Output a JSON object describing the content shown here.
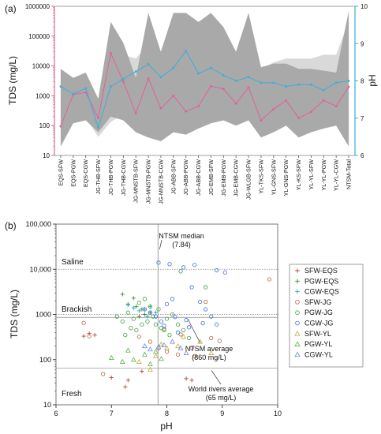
{
  "chart_data": [
    {
      "panel_label": "(a)",
      "type": "line",
      "ylabel": "TDS (mg/L)",
      "y2label": "pH",
      "yscale": "log",
      "ylim": [
        10,
        1000000
      ],
      "y2lim": [
        6,
        10
      ],
      "yticks": [
        "10",
        "100",
        "1000",
        "10000",
        "100000",
        "1000000"
      ],
      "y2ticks": [
        "6",
        "7",
        "8",
        "9",
        "10"
      ],
      "colors": {
        "tds": "#e0609a",
        "ph": "#3aaed8",
        "tds_range": "#a9a9a9",
        "ph_range": "#d9d9d9",
        "left_axis": "#e0609a",
        "right_axis": "#3aaed8"
      },
      "categories": [
        "EQS-SFW",
        "EQS-PGW",
        "EQS-CGW",
        "JG-THB-SFW",
        "JG-THB-PGW",
        "JG-THB-CGW",
        "JG-MNSTB-SFW",
        "JG-MNSTB-PGW",
        "JG-MNSTB-CGW",
        "JG-ABB-SFW",
        "JG-ABB-PGW",
        "JG-ABB-CGW",
        "JG-EMB-SFW",
        "JG-EMB-PGW",
        "JG-EMB-CGW",
        "JG-WLGB-SFW",
        "YL-TKS-SFW",
        "YL-GNS-SFW",
        "YL-GNS-PGW",
        "YL-KS-SFW",
        "YL-YL-SFW",
        "YL-YL-PGW",
        "YL-YL-CGW",
        "NTSM-Total"
      ],
      "series": [
        {
          "values_tds": [
            95,
            1100,
            1300,
            180,
            27000,
            3000,
            260,
            3800,
            380,
            1000,
            300,
            450,
            2100,
            1700,
            550,
            1900,
            150,
            360,
            700,
            180,
            290,
            700,
            450,
            2000
          ]
        },
        {
          "values_ph": [
            7.85,
            7.65,
            7.8,
            6.75,
            7.85,
            8.05,
            8.25,
            8.45,
            8.1,
            8.35,
            8.8,
            8.2,
            8.35,
            8.15,
            8.0,
            8.1,
            7.95,
            7.95,
            7.85,
            7.9,
            7.9,
            7.75,
            7.95,
            8.0
          ]
        }
      ],
      "tds_range": {
        "upper": [
          8000,
          4000,
          6000,
          800,
          300000,
          60000,
          4000,
          600000,
          30000,
          600000,
          600000,
          300000,
          600000,
          200000,
          30000,
          600000,
          9000,
          12000,
          12000,
          8000,
          8000,
          7000,
          6000,
          700000
        ],
        "lower": [
          20,
          120,
          150,
          60,
          200,
          150,
          60,
          40,
          30,
          60,
          50,
          80,
          120,
          150,
          100,
          150,
          40,
          60,
          100,
          40,
          60,
          80,
          100,
          20
        ]
      },
      "ph_range": {
        "upper": [
          8.1,
          8.0,
          8.1,
          7.0,
          8.6,
          8.7,
          8.6,
          9.0,
          8.8,
          9.1,
          9.6,
          9.1,
          9.1,
          8.9,
          8.6,
          8.8,
          8.3,
          8.5,
          8.6,
          8.6,
          8.6,
          8.7,
          8.7,
          9.6
        ],
        "lower": [
          6.6,
          6.9,
          7.0,
          6.5,
          6.9,
          7.1,
          7.4,
          7.3,
          7.2,
          7.3,
          7.4,
          7.3,
          7.3,
          7.2,
          7.3,
          7.2,
          7.1,
          7.2,
          7.1,
          7.1,
          7.1,
          7.0,
          7.1,
          6.4
        ]
      }
    },
    {
      "panel_label": "(b)",
      "type": "scatter",
      "xlabel": "pH",
      "ylabel": "TDS (mg/L)",
      "xlim": [
        6,
        10
      ],
      "ylim": [
        10,
        100000
      ],
      "yscale": "log",
      "xticks": [
        "6",
        "7",
        "8",
        "9",
        "10"
      ],
      "yticks": [
        "10",
        "100",
        "1000",
        "10,000",
        "100,000"
      ],
      "zones": [
        "Saline",
        "Brackish",
        "Fresh"
      ],
      "ref_lines": [
        {
          "label": "NTSM median\n(7.84)",
          "axis": "x",
          "value": 7.84
        },
        {
          "label": "NTSM average\n(860 mg/L)",
          "axis": "y",
          "value": 860
        },
        {
          "label": "World rivers average\n(65 mg/L)",
          "axis": "y",
          "value": 65
        },
        {
          "axis": "y",
          "value": 10000
        },
        {
          "axis": "y",
          "value": 1000
        }
      ],
      "legend_position": "right",
      "series": [
        {
          "name": "SFW-EQS",
          "marker": "plus",
          "color": "#b5483a",
          "points": [
            [
              6.5,
              330
            ],
            [
              6.7,
              350
            ],
            [
              7.0,
              40
            ],
            [
              7.25,
              25
            ],
            [
              7.3,
              35
            ],
            [
              8.35,
              38
            ],
            [
              8.45,
              35
            ],
            [
              7.55,
              55
            ],
            [
              6.6,
              380
            ]
          ]
        },
        {
          "name": "PGW-EQS",
          "marker": "plus",
          "color": "#3a8c3a",
          "points": [
            [
              7.2,
              2800
            ],
            [
              7.3,
              1700
            ],
            [
              7.4,
              2300
            ],
            [
              7.45,
              1500
            ],
            [
              7.55,
              1300
            ],
            [
              7.6,
              1000
            ],
            [
              7.5,
              900
            ],
            [
              7.7,
              1100
            ]
          ]
        },
        {
          "name": "CGW-EQS",
          "marker": "plus",
          "color": "#2aa8b8",
          "points": [
            [
              7.3,
              1600
            ],
            [
              7.4,
              1400
            ],
            [
              7.5,
              1200
            ],
            [
              7.6,
              1300
            ],
            [
              7.7,
              1500
            ],
            [
              7.65,
              900
            ],
            [
              7.8,
              1100
            ]
          ]
        },
        {
          "name": "SFW-JG",
          "marker": "circle",
          "color": "#b5603a",
          "points": [
            [
              6.5,
              650
            ],
            [
              6.6,
              330
            ],
            [
              6.85,
              48
            ],
            [
              7.5,
              320
            ],
            [
              7.7,
              250
            ],
            [
              7.85,
              180
            ],
            [
              8.0,
              150
            ],
            [
              8.2,
              130
            ],
            [
              8.5,
              120
            ],
            [
              8.8,
              300
            ],
            [
              8.7,
              1900
            ],
            [
              8.95,
              260
            ],
            [
              9.85,
              6000
            ],
            [
              8.45,
              180
            ],
            [
              8.25,
              360
            ],
            [
              7.95,
              480
            ]
          ]
        },
        {
          "name": "PGW-JG",
          "marker": "circle",
          "color": "#3ea03e",
          "points": [
            [
              7.2,
              700
            ],
            [
              7.3,
              1100
            ],
            [
              7.4,
              800
            ],
            [
              7.5,
              1800
            ],
            [
              7.55,
              600
            ],
            [
              7.6,
              2200
            ],
            [
              7.65,
              700
            ],
            [
              7.7,
              1500
            ],
            [
              7.75,
              900
            ],
            [
              7.8,
              600
            ],
            [
              7.85,
              1300
            ],
            [
              7.9,
              500
            ],
            [
              7.95,
              450
            ],
            [
              8.0,
              800
            ],
            [
              8.05,
              350
            ],
            [
              8.1,
              1000
            ],
            [
              8.2,
              600
            ],
            [
              8.3,
              450
            ],
            [
              8.4,
              300
            ],
            [
              7.45,
              450
            ],
            [
              7.35,
              500
            ],
            [
              7.25,
              350
            ],
            [
              7.1,
              900
            ],
            [
              8.25,
              9000
            ],
            [
              8.7,
              4000
            ]
          ]
        },
        {
          "name": "CGW-JG",
          "marker": "circle",
          "color": "#3b6fd8",
          "points": [
            [
              7.6,
              1300
            ],
            [
              7.7,
              1100
            ],
            [
              7.8,
              900
            ],
            [
              7.85,
              14000
            ],
            [
              8.05,
              13000
            ],
            [
              8.3,
              11000
            ],
            [
              8.5,
              12500
            ],
            [
              8.9,
              9500
            ],
            [
              9.05,
              8500
            ],
            [
              8.45,
              4000
            ],
            [
              8.6,
              1900
            ],
            [
              8.7,
              1300
            ],
            [
              8.8,
              900
            ],
            [
              8.9,
              600
            ],
            [
              8.1,
              2200
            ],
            [
              8.0,
              1700
            ],
            [
              7.9,
              700
            ],
            [
              8.2,
              400
            ],
            [
              8.4,
              520
            ],
            [
              7.95,
              560
            ],
            [
              8.15,
              880
            ],
            [
              8.35,
              750
            ],
            [
              8.65,
              640
            ]
          ]
        },
        {
          "name": "SFW-YL",
          "marker": "triangle",
          "color": "#c8a83a",
          "points": [
            [
              7.7,
              60
            ],
            [
              7.9,
              220
            ],
            [
              8.0,
              180
            ],
            [
              8.2,
              200
            ],
            [
              8.3,
              320
            ],
            [
              8.6,
              250
            ],
            [
              8.8,
              140
            ],
            [
              7.5,
              90
            ],
            [
              7.8,
              120
            ]
          ]
        },
        {
          "name": "PGW-YL",
          "marker": "triangle",
          "color": "#5ab048",
          "points": [
            [
              7.0,
              110
            ],
            [
              7.2,
              90
            ],
            [
              7.4,
              100
            ],
            [
              7.6,
              130
            ],
            [
              7.7,
              80
            ],
            [
              7.8,
              150
            ],
            [
              7.3,
              160
            ],
            [
              7.9,
              105
            ]
          ]
        },
        {
          "name": "CGW-YL",
          "marker": "triangle",
          "color": "#6a8ae8",
          "points": [
            [
              7.7,
              170
            ],
            [
              7.85,
              190
            ],
            [
              7.95,
              210
            ],
            [
              8.1,
              250
            ],
            [
              8.25,
              180
            ],
            [
              8.35,
              140
            ],
            [
              7.6,
              200
            ]
          ]
        }
      ]
    }
  ]
}
